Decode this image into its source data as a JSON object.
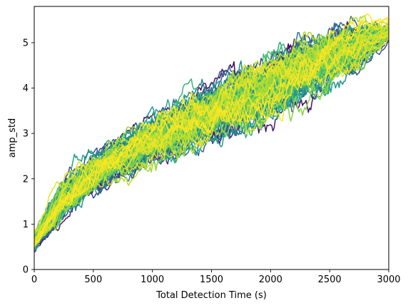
{
  "chart_data": {
    "type": "line",
    "title": "",
    "xlabel": "Total Detection Time (s)",
    "ylabel": "amp_std",
    "xlim": [
      0,
      3000
    ],
    "ylim": [
      0,
      5.8
    ],
    "xticks": [
      0,
      500,
      1000,
      1500,
      2000,
      2500,
      3000
    ],
    "xtick_labels": [
      "0",
      "500",
      "1000",
      "1500",
      "2000",
      "2500",
      "3000"
    ],
    "yticks": [
      0,
      1,
      2,
      3,
      4,
      5
    ],
    "ytick_labels": [
      "0",
      "1",
      "2",
      "3",
      "4",
      "5"
    ],
    "grid": false,
    "legend": "none",
    "colormap": "viridis",
    "colormap_colors": [
      "#440154",
      "#472d7b",
      "#3b528b",
      "#2c728e",
      "#21918c",
      "#28ae80",
      "#5ec962",
      "#addc30",
      "#fde725"
    ],
    "n_series": 120,
    "series_summary": {
      "description": "Many noisy random-walk curves, each rising roughly monotonically from about 0.6 at x=0 to about 5.2 at x=3000",
      "x": [
        0,
        250,
        500,
        750,
        1000,
        1250,
        1500,
        1750,
        2000,
        2250,
        2500,
        2750,
        3000
      ],
      "y_median": [
        0.6,
        1.55,
        2.1,
        2.5,
        2.85,
        3.15,
        3.45,
        3.75,
        4.05,
        4.35,
        4.65,
        4.95,
        5.25
      ],
      "y_low": [
        0.4,
        1.1,
        1.65,
        2.05,
        2.4,
        2.6,
        2.85,
        3.05,
        3.35,
        3.7,
        4.1,
        4.6,
        5.05
      ],
      "y_high": [
        0.9,
        2.0,
        2.55,
        3.0,
        3.5,
        3.85,
        4.15,
        4.5,
        4.8,
        5.05,
        5.3,
        5.55,
        5.45
      ]
    }
  }
}
